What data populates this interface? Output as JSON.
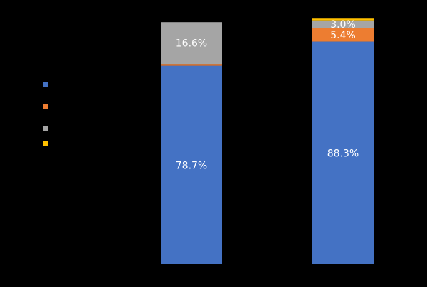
{
  "chart_data": {
    "type": "bar",
    "stacked": true,
    "categories": [
      "",
      ""
    ],
    "series": [
      {
        "values": [
          78.7,
          88.3
        ],
        "color": "#4472C4",
        "labels": [
          "78.7%",
          "88.3%"
        ]
      },
      {
        "values": [
          0.7,
          5.4
        ],
        "color": "#ED7D31",
        "labels": [
          "",
          "5.4%"
        ]
      },
      {
        "values": [
          16.6,
          3.0
        ],
        "color": "#A5A5A5",
        "labels": [
          "16.6%",
          "3.0%"
        ]
      },
      {
        "values": [
          0.0,
          0.7
        ],
        "color": "#FFC000",
        "labels": [
          "",
          ""
        ]
      }
    ],
    "xlabel": "",
    "ylabel": "",
    "ylim": [
      0,
      100
    ],
    "grid": false,
    "legend": "left"
  },
  "colors": {
    "background": "#000000",
    "label_text": "#ffffff"
  }
}
